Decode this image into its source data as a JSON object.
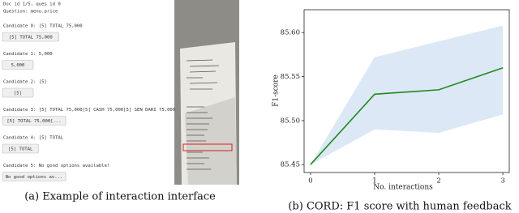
{
  "interface": {
    "header": [
      "Doc id 1/5, ques id 0",
      "Question: menu.price"
    ],
    "candidates": [
      {
        "label": "Candidate 0: [5] TOTAL 75,000",
        "button": "[5] TOTAL 75,000"
      },
      {
        "label": "Candidate 1: 5,000",
        "button": "5,000"
      },
      {
        "label": "Candidate 2: [5]",
        "button": "[5]"
      },
      {
        "label": "Candidate 3: [5] TOTAL 75,000[5] CASH 75,000[5] SEN DARI 75,000",
        "button": "[5] TOTAL 75,000[..."
      },
      {
        "label": "Candidate 4: [5] TOTAL",
        "button": "[5] TOTAL"
      },
      {
        "label": "Candidate 5: No good options available!",
        "button": "No good options av..."
      }
    ],
    "caption": "(a) Example of interaction interface"
  },
  "chart_data": {
    "type": "line",
    "caption": "(b) CORD: F1 score with human feedback",
    "x_label": "No. interactions",
    "y_label": "F1-score",
    "x": [
      0,
      1,
      2,
      3
    ],
    "xlim": [
      -0.1,
      3.1
    ],
    "xticks": [
      0,
      1,
      2,
      3
    ],
    "ylim": [
      85.441,
      85.626
    ],
    "yticks": [
      85.45,
      {
        "value": 85.5,
        "label": "85.50"
      },
      85.55,
      {
        "value": 85.6,
        "label": "85.60"
      }
    ],
    "series": [
      {
        "color": "#1f8a1f",
        "values": [
          85.45,
          85.53,
          85.535,
          85.56
        ]
      }
    ],
    "band": {
      "color": "#dce8f6",
      "lower": [
        85.45,
        85.49,
        85.486,
        85.507
      ],
      "upper": [
        85.45,
        85.572,
        85.59,
        85.608
      ]
    }
  }
}
